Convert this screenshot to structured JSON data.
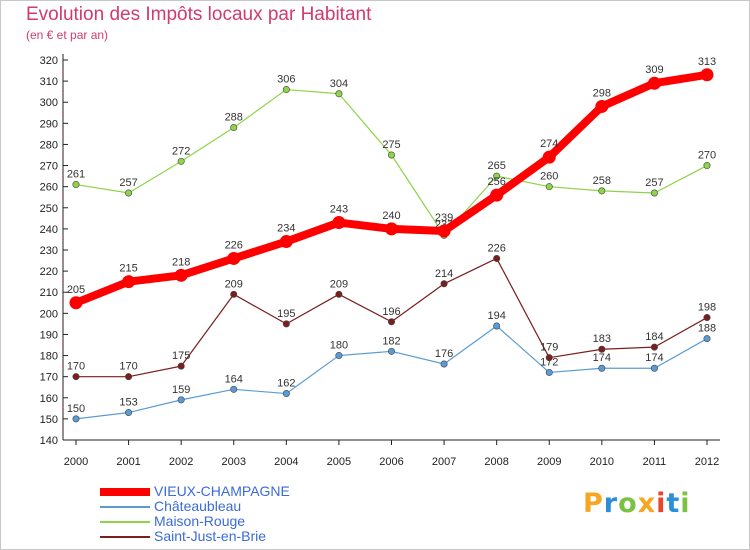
{
  "header": {
    "title": "Evolution des Impôts locaux par Habitant",
    "subtitle": "(en € et par an)"
  },
  "logo": {
    "text": "Proxiti",
    "letters": [
      {
        "ch": "P",
        "color": "#f5a623"
      },
      {
        "ch": "r",
        "color": "#2b8fd6"
      },
      {
        "ch": "o",
        "color": "#7cc242"
      },
      {
        "ch": "x",
        "color": "#f5a623"
      },
      {
        "ch": "i",
        "color": "#e8452c"
      },
      {
        "ch": "t",
        "color": "#2b8fd6"
      },
      {
        "ch": "i",
        "color": "#7cc242"
      }
    ]
  },
  "chart_data": {
    "type": "line",
    "title": "Evolution des Impôts locaux par Habitant",
    "subtitle": "(en € et par an)",
    "x": [
      "2000",
      "2001",
      "2002",
      "2003",
      "2004",
      "2005",
      "2006",
      "2007",
      "2008",
      "2009",
      "2010",
      "2011",
      "2012"
    ],
    "ylim": [
      140,
      320
    ],
    "yticks": [
      140,
      150,
      160,
      170,
      180,
      190,
      200,
      210,
      220,
      230,
      240,
      250,
      260,
      270,
      280,
      290,
      300,
      310,
      320
    ],
    "grid": false,
    "legend_position": "bottom-left",
    "series": [
      {
        "name": "VIEUX-CHAMPAGNE",
        "color": "#ff0000",
        "values": [
          205,
          215,
          218,
          226,
          234,
          243,
          240,
          239,
          256,
          274,
          298,
          309,
          313
        ]
      },
      {
        "name": "Châteaubleau",
        "color": "#5b9bd5",
        "values": [
          150,
          153,
          159,
          164,
          162,
          180,
          182,
          176,
          194,
          172,
          174,
          174,
          188
        ]
      },
      {
        "name": "Maison-Rouge",
        "color": "#8ed34a",
        "values": [
          261,
          257,
          272,
          288,
          306,
          304,
          275,
          237,
          265,
          260,
          258,
          257,
          270
        ]
      },
      {
        "name": "Saint-Just-en-Brie",
        "color": "#7b1e1e",
        "values": [
          170,
          170,
          175,
          209,
          195,
          209,
          196,
          214,
          226,
          179,
          183,
          184,
          198
        ]
      }
    ]
  }
}
